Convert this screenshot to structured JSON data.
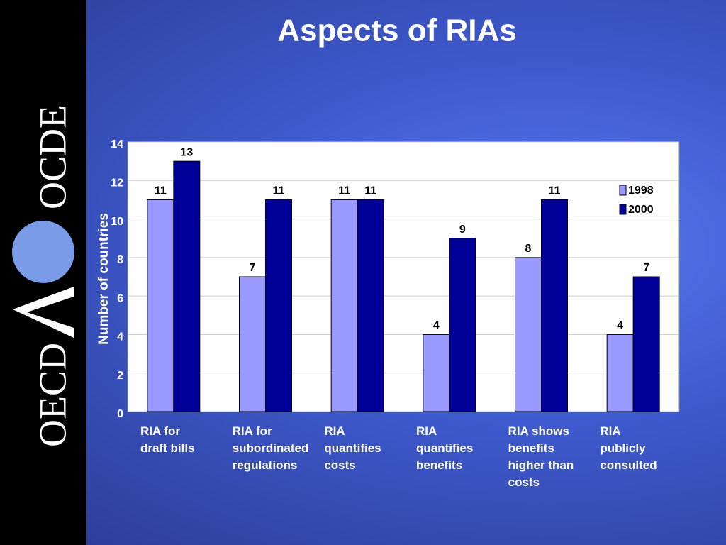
{
  "logo": {
    "top": "OCDE",
    "bottom": "OECD"
  },
  "chart_data": {
    "type": "bar",
    "title": "Aspects of RIAs",
    "ylabel": "Number of countries",
    "categories": [
      "RIA for\ndraft bills",
      "RIA for\nsubordinated\nregulations",
      "RIA\nquantifies\ncosts",
      "RIA\nquantifies\nbenefits",
      "RIA shows\nbenefits\nhigher than\ncosts",
      "RIA\npublicly\nconsulted"
    ],
    "series": [
      {
        "name": "1998",
        "color": "#9999ff",
        "values": [
          11,
          7,
          11,
          4,
          8,
          4
        ]
      },
      {
        "name": "2000",
        "color": "#000099",
        "values": [
          13,
          11,
          11,
          9,
          11,
          7
        ]
      }
    ],
    "ylim": [
      0,
      14
    ],
    "yticks": [
      0,
      2,
      4,
      6,
      8,
      10,
      12,
      14
    ],
    "grid": true,
    "legend": "upper right"
  }
}
